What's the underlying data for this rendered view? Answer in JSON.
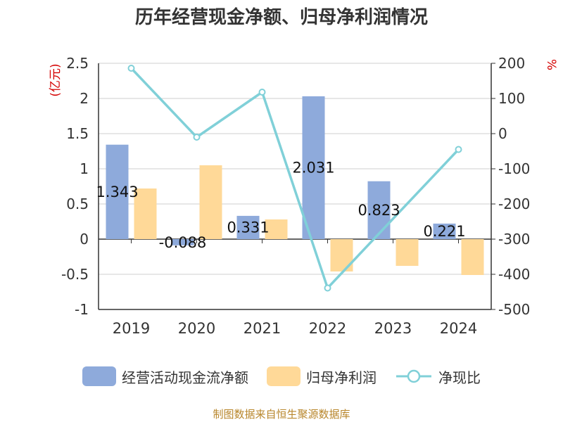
{
  "title": "历年经营现金净额、归母净利润情况",
  "source": "制图数据来自恒生聚源数据库",
  "colors": {
    "op_cash": "#8eaadb",
    "net_profit": "#ffd998",
    "ratio": "#80d0d8",
    "left_unit": "#d40000",
    "right_unit": "#d40000"
  },
  "chart_data": {
    "type": "bar",
    "title": "历年经营现金净额、归母净利润情况",
    "categories": [
      "2019",
      "2020",
      "2021",
      "2022",
      "2023",
      "2024"
    ],
    "y_left": {
      "unit": "(亿元)",
      "ylim": [
        -1,
        2.5
      ],
      "ticks": [
        "2.5",
        "2",
        "1.5",
        "1",
        "0.5",
        "0",
        "-0.5",
        "-1"
      ]
    },
    "y_right": {
      "unit": "%",
      "ylim": [
        -500,
        200
      ],
      "ticks": [
        "200",
        "100",
        "0",
        "-100",
        "-200",
        "-300",
        "-400",
        "-500"
      ]
    },
    "grid": true,
    "legend_position": "bottom",
    "series": [
      {
        "name": "经营活动现金流净额",
        "type": "bar",
        "axis": "left",
        "values": [
          1.343,
          -0.088,
          0.331,
          2.031,
          0.823,
          0.221
        ],
        "labels": [
          "1.343",
          "-0.088",
          "0.331",
          "2.031",
          "0.823",
          "0.221"
        ]
      },
      {
        "name": "归母净利润",
        "type": "bar",
        "axis": "left",
        "values": [
          0.72,
          1.05,
          0.28,
          -0.46,
          -0.38,
          -0.51
        ]
      },
      {
        "name": "净现比",
        "type": "line",
        "axis": "right",
        "values": [
          186,
          -10,
          118,
          -439,
          null,
          -45
        ]
      }
    ]
  },
  "legend": {
    "op_cash": "经营活动现金流净额",
    "net_profit": "归母净利润",
    "ratio": "净现比"
  }
}
